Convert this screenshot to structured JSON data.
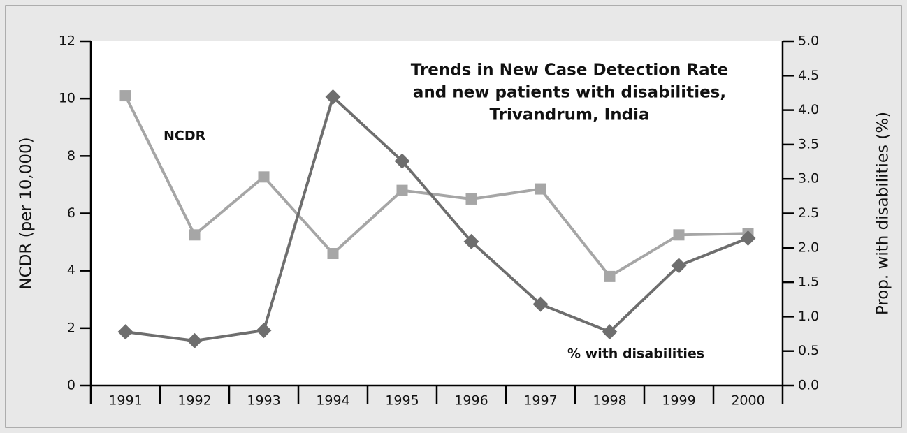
{
  "chart_data": {
    "type": "line",
    "title": [
      "Trends in New Case Detection Rate",
      "and new patients with disabilities,",
      "Trivandrum, India"
    ],
    "y_label": "NCDR (per 10,000)",
    "y2_label": "Prop. with disabilities (%)",
    "annotations": [
      "NCDR",
      "% with disabilities"
    ],
    "categories": [
      "1991",
      "1992",
      "1993",
      "1994",
      "1995",
      "1996",
      "1997",
      "1998",
      "1999",
      "2000"
    ],
    "series": [
      {
        "name": "NCDR",
        "color": "#a6a6a6",
        "marker": "square",
        "values": [
          10.1,
          5.25,
          7.27,
          4.6,
          6.8,
          6.5,
          6.85,
          3.8,
          5.25,
          5.3
        ]
      },
      {
        "name": "% with disabilities",
        "color": "#6e6e6e",
        "marker": "diamond",
        "axis": "y2",
        "values": [
          0.78,
          0.65,
          0.8,
          4.19,
          3.26,
          2.09,
          1.18,
          0.78,
          1.74,
          2.14
        ]
      }
    ],
    "ylim": [
      0,
      12
    ],
    "yticks": [
      0,
      2,
      4,
      6,
      8,
      10,
      12
    ],
    "y2lim": [
      0,
      5
    ],
    "y2ticks": [
      {
        "value": 0,
        "label": "0.0"
      },
      {
        "value": 0.5,
        "label": "0.5"
      },
      {
        "value": 1,
        "label": "1.0"
      },
      {
        "value": 1.5,
        "label": "1.5"
      },
      {
        "value": 2,
        "label": "2.0"
      },
      {
        "value": 2.5,
        "label": "2.5"
      },
      {
        "value": 3,
        "label": "3.0"
      },
      {
        "value": 3.5,
        "label": "3.5"
      },
      {
        "value": 4,
        "label": "4.0"
      },
      {
        "value": 4.5,
        "label": "4.5"
      },
      {
        "value": 5,
        "label": "5.0"
      }
    ]
  }
}
